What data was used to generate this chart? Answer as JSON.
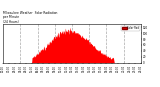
{
  "title": "Milwaukee Weather Solar Radiation  per Minute  (24 Hours)",
  "background_color": "#ffffff",
  "plot_bg_color": "#ffffff",
  "fill_color": "#ff0000",
  "line_color": "#cc0000",
  "grid_color": "#aaaaaa",
  "ylim": [
    0,
    130
  ],
  "xlim": [
    0,
    1440
  ],
  "legend_label": "Solar Rad",
  "legend_color": "#ff0000",
  "num_points": 1440,
  "ytick_positions": [
    0,
    20,
    40,
    60,
    80,
    100,
    120
  ],
  "figsize": [
    1.6,
    0.87
  ],
  "dpi": 100
}
